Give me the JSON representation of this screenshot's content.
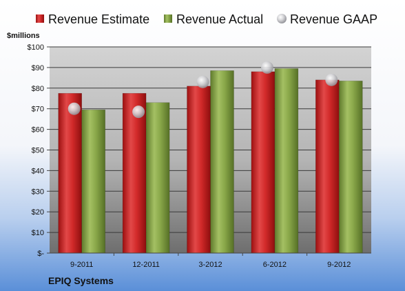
{
  "chart_data": {
    "type": "bar",
    "categories": [
      "9-2011",
      "12-2011",
      "3-2012",
      "6-2012",
      "9-2012"
    ],
    "series": [
      {
        "name": "Revenue Estimate",
        "kind": "bar",
        "color": "#d42b2b",
        "values": [
          77.5,
          77.5,
          81,
          88,
          84
        ]
      },
      {
        "name": "Revenue Actual",
        "kind": "bar",
        "color": "#8aa84a",
        "values": [
          69.5,
          73,
          88.5,
          89.5,
          83.5
        ]
      },
      {
        "name": "Revenue GAAP",
        "kind": "marker",
        "color": "#c8c8cc",
        "values": [
          70,
          68.5,
          83,
          90,
          84
        ]
      }
    ],
    "ylabel": "$millions",
    "ylim": [
      0,
      100
    ],
    "yticks": [
      "$-",
      "$10",
      "$20",
      "$30",
      "$40",
      "$50",
      "$60",
      "$70",
      "$80",
      "$90",
      "$100"
    ],
    "grid": true,
    "legend_position": "top"
  },
  "company_name": "EPIQ Systems"
}
